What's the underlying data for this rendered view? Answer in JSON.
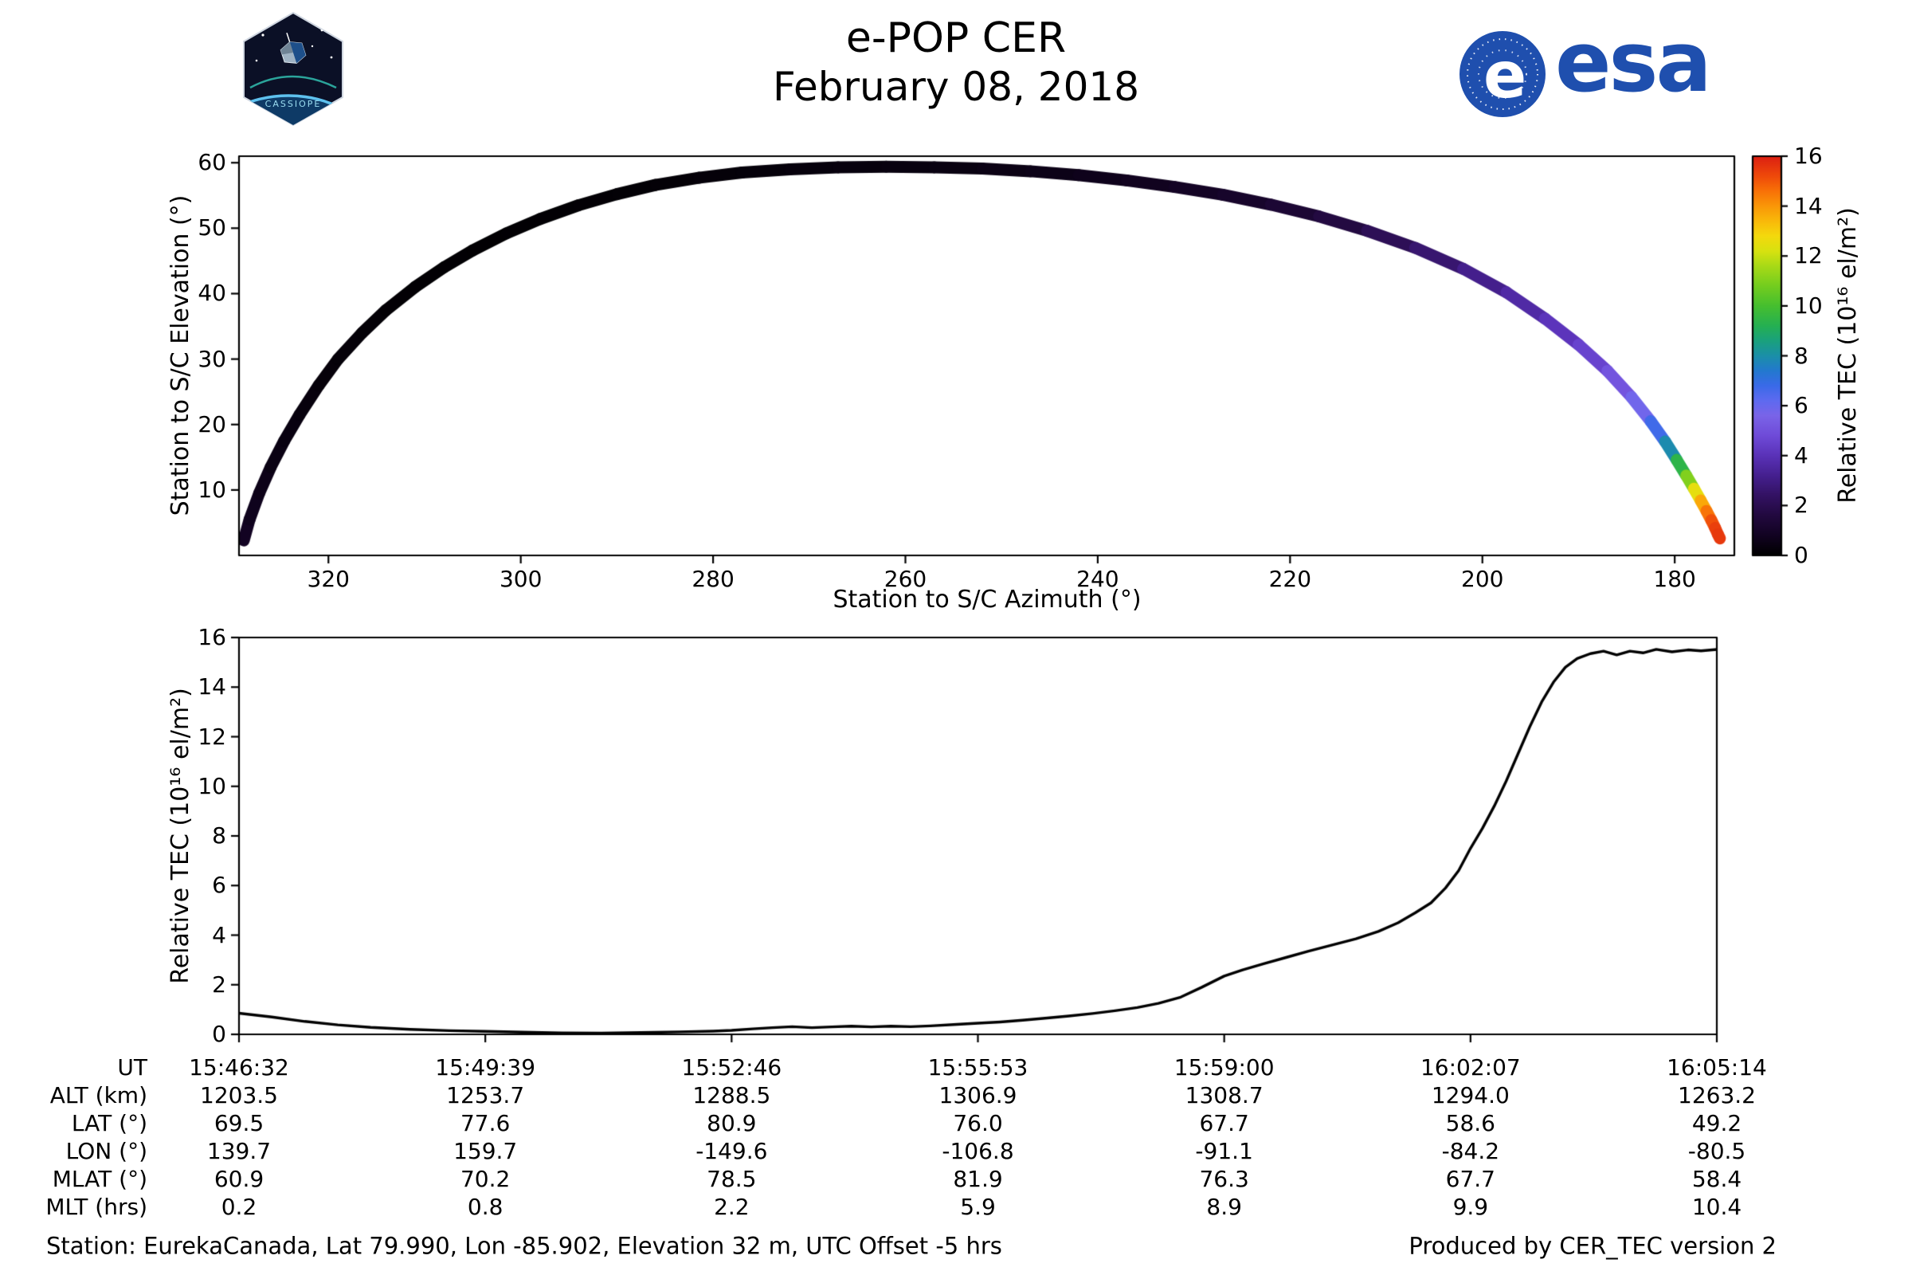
{
  "header": {
    "title": "e-POP CER",
    "date": "February 08, 2018",
    "patch_label": "CASSIOPE",
    "esa_wordmark": "esa",
    "esa_globe_letter": "e"
  },
  "footer": {
    "station": "Station: EurekaCanada, Lat 79.990, Lon -85.902, Elevation 32 m, UTC Offset -5 hrs",
    "produced": "Produced by CER_TEC version 2"
  },
  "colors": {
    "esa_blue": "#1f4fae",
    "line": "#000000",
    "patch_sky": "#0b1026",
    "colormap_stops": [
      [
        0,
        "#000000"
      ],
      [
        0.8,
        "#120322"
      ],
      [
        1.6,
        "#22093f"
      ],
      [
        2.4,
        "#331263"
      ],
      [
        3.2,
        "#45208f"
      ],
      [
        4,
        "#5a32b8"
      ],
      [
        4.8,
        "#6f4bd8"
      ],
      [
        5.6,
        "#7a64e8"
      ],
      [
        6.2,
        "#5e6af0"
      ],
      [
        6.8,
        "#3a6ae8"
      ],
      [
        7.4,
        "#2379cf"
      ],
      [
        8,
        "#1b8fa8"
      ],
      [
        8.6,
        "#1aa17d"
      ],
      [
        9.2,
        "#25b052"
      ],
      [
        10,
        "#46bf2f"
      ],
      [
        10.8,
        "#74cd1f"
      ],
      [
        11.6,
        "#a8da17"
      ],
      [
        12.2,
        "#d8e210"
      ],
      [
        12.8,
        "#f4d90d"
      ],
      [
        13.4,
        "#f9b90a"
      ],
      [
        14,
        "#fa9708"
      ],
      [
        14.6,
        "#f87107"
      ],
      [
        15.2,
        "#ef4a0a"
      ],
      [
        16,
        "#dc1f12"
      ]
    ]
  },
  "chart_data": [
    {
      "type": "scatter",
      "title": "",
      "xlabel": "Station to S/C Azimuth (°)",
      "ylabel": "Station to S/C Elevation (°)",
      "xlim": [
        329.3,
        173.8
      ],
      "x_inverted": true,
      "ylim": [
        0,
        61
      ],
      "x_ticks": [
        320,
        300,
        280,
        260,
        240,
        220,
        200,
        180
      ],
      "y_ticks": [
        10,
        20,
        30,
        40,
        50,
        60
      ],
      "color_by": "relative_tec",
      "colorbar": {
        "label": "Relative TEC (10¹⁶ el/m²)",
        "ticks": [
          0,
          2,
          4,
          6,
          8,
          10,
          12,
          14,
          16
        ],
        "range": [
          0,
          16
        ]
      },
      "track_az_el_tec": [
        [
          328.8,
          2.3,
          0.85
        ],
        [
          328.2,
          5.5,
          0.75
        ],
        [
          327.2,
          9.5,
          0.62
        ],
        [
          326.0,
          13.5,
          0.5
        ],
        [
          324.6,
          17.5,
          0.4
        ],
        [
          323.0,
          21.5,
          0.33
        ],
        [
          321.0,
          26.0,
          0.27
        ],
        [
          319.0,
          30.0,
          0.22
        ],
        [
          316.5,
          34.0,
          0.18
        ],
        [
          314.0,
          37.5,
          0.14
        ],
        [
          311.0,
          41.0,
          0.11
        ],
        [
          308.0,
          44.0,
          0.09
        ],
        [
          305.0,
          46.6,
          0.08
        ],
        [
          301.5,
          49.2,
          0.08
        ],
        [
          298.0,
          51.4,
          0.09
        ],
        [
          294.0,
          53.5,
          0.11
        ],
        [
          290.0,
          55.2,
          0.13
        ],
        [
          286.0,
          56.6,
          0.16
        ],
        [
          281.5,
          57.7,
          0.19
        ],
        [
          277.0,
          58.5,
          0.22
        ],
        [
          272.0,
          59.0,
          0.26
        ],
        [
          267.0,
          59.3,
          0.29
        ],
        [
          262.0,
          59.4,
          0.33
        ],
        [
          257.0,
          59.3,
          0.38
        ],
        [
          252.0,
          59.1,
          0.44
        ],
        [
          247.0,
          58.7,
          0.5
        ],
        [
          242.0,
          58.1,
          0.58
        ],
        [
          237.0,
          57.3,
          0.68
        ],
        [
          232.0,
          56.3,
          0.8
        ],
        [
          227.0,
          55.1,
          0.95
        ],
        [
          222.0,
          53.6,
          1.15
        ],
        [
          217.0,
          51.8,
          1.45
        ],
        [
          212.0,
          49.6,
          1.85
        ],
        [
          207.0,
          47.0,
          2.35
        ],
        [
          202.0,
          43.8,
          2.9
        ],
        [
          197.5,
          40.2,
          3.4
        ],
        [
          193.5,
          36.2,
          3.85
        ],
        [
          190.0,
          32.2,
          4.3
        ],
        [
          187.0,
          28.2,
          4.8
        ],
        [
          184.5,
          24.2,
          5.4
        ],
        [
          182.5,
          20.5,
          6.2
        ],
        [
          181.0,
          17.4,
          7.2
        ],
        [
          179.8,
          14.6,
          8.6
        ],
        [
          178.8,
          12.2,
          10.2
        ],
        [
          178.0,
          10.2,
          11.8
        ],
        [
          177.3,
          8.4,
          13.2
        ],
        [
          176.7,
          6.8,
          14.2
        ],
        [
          176.2,
          5.4,
          14.9
        ],
        [
          175.8,
          4.2,
          15.3
        ],
        [
          175.5,
          3.2,
          15.5
        ],
        [
          175.3,
          2.6,
          15.55
        ]
      ]
    },
    {
      "type": "line",
      "title": "",
      "xlabel": "",
      "ylabel": "Relative TEC (10¹⁶ el/m²)",
      "ylim": [
        0,
        16
      ],
      "y_ticks": [
        0,
        2,
        4,
        6,
        8,
        10,
        12,
        14,
        16
      ],
      "x_ticks_seconds": [
        0,
        187,
        374,
        561,
        748,
        935,
        1122
      ],
      "x_tick_labels": [
        "15:46:32",
        "15:49:39",
        "15:52:46",
        "15:55:53",
        "15:59:00",
        "16:02:07",
        "16:05:14"
      ],
      "line_color": "#000000",
      "series_t_tec": [
        [
          0,
          0.85
        ],
        [
          25,
          0.7
        ],
        [
          50,
          0.52
        ],
        [
          75,
          0.38
        ],
        [
          100,
          0.28
        ],
        [
          130,
          0.2
        ],
        [
          160,
          0.15
        ],
        [
          187,
          0.12
        ],
        [
          215,
          0.09
        ],
        [
          245,
          0.06
        ],
        [
          275,
          0.05
        ],
        [
          305,
          0.07
        ],
        [
          335,
          0.1
        ],
        [
          360,
          0.13
        ],
        [
          374,
          0.16
        ],
        [
          390,
          0.22
        ],
        [
          405,
          0.27
        ],
        [
          420,
          0.31
        ],
        [
          435,
          0.27
        ],
        [
          450,
          0.3
        ],
        [
          465,
          0.33
        ],
        [
          480,
          0.3
        ],
        [
          495,
          0.33
        ],
        [
          510,
          0.31
        ],
        [
          525,
          0.34
        ],
        [
          545,
          0.4
        ],
        [
          561,
          0.45
        ],
        [
          578,
          0.5
        ],
        [
          595,
          0.57
        ],
        [
          612,
          0.65
        ],
        [
          630,
          0.74
        ],
        [
          648,
          0.84
        ],
        [
          665,
          0.95
        ],
        [
          682,
          1.08
        ],
        [
          698,
          1.25
        ],
        [
          715,
          1.5
        ],
        [
          731,
          1.9
        ],
        [
          748,
          2.35
        ],
        [
          762,
          2.6
        ],
        [
          778,
          2.85
        ],
        [
          795,
          3.1
        ],
        [
          812,
          3.35
        ],
        [
          830,
          3.6
        ],
        [
          848,
          3.85
        ],
        [
          865,
          4.15
        ],
        [
          880,
          4.5
        ],
        [
          893,
          4.9
        ],
        [
          905,
          5.3
        ],
        [
          916,
          5.9
        ],
        [
          926,
          6.6
        ],
        [
          935,
          7.5
        ],
        [
          944,
          8.3
        ],
        [
          953,
          9.2
        ],
        [
          962,
          10.2
        ],
        [
          971,
          11.3
        ],
        [
          980,
          12.4
        ],
        [
          989,
          13.4
        ],
        [
          998,
          14.2
        ],
        [
          1007,
          14.8
        ],
        [
          1016,
          15.15
        ],
        [
          1026,
          15.35
        ],
        [
          1036,
          15.45
        ],
        [
          1046,
          15.3
        ],
        [
          1056,
          15.45
        ],
        [
          1066,
          15.38
        ],
        [
          1076,
          15.52
        ],
        [
          1088,
          15.42
        ],
        [
          1100,
          15.5
        ],
        [
          1110,
          15.46
        ],
        [
          1122,
          15.52
        ]
      ]
    }
  ],
  "table": {
    "row_labels": [
      "UT",
      "ALT (km)",
      "LAT (°)",
      "LON (°)",
      "MLAT (°)",
      "MLT (hrs)"
    ],
    "columns": [
      [
        "15:46:32",
        "1203.5",
        "69.5",
        "139.7",
        "60.9",
        "0.2"
      ],
      [
        "15:49:39",
        "1253.7",
        "77.6",
        "159.7",
        "70.2",
        "0.8"
      ],
      [
        "15:52:46",
        "1288.5",
        "80.9",
        "-149.6",
        "78.5",
        "2.2"
      ],
      [
        "15:55:53",
        "1306.9",
        "76.0",
        "-106.8",
        "81.9",
        "5.9"
      ],
      [
        "15:59:00",
        "1308.7",
        "67.7",
        "-91.1",
        "76.3",
        "8.9"
      ],
      [
        "16:02:07",
        "1294.0",
        "58.6",
        "-84.2",
        "67.7",
        "9.9"
      ],
      [
        "16:05:14",
        "1263.2",
        "49.2",
        "-80.5",
        "58.4",
        "10.4"
      ]
    ]
  }
}
